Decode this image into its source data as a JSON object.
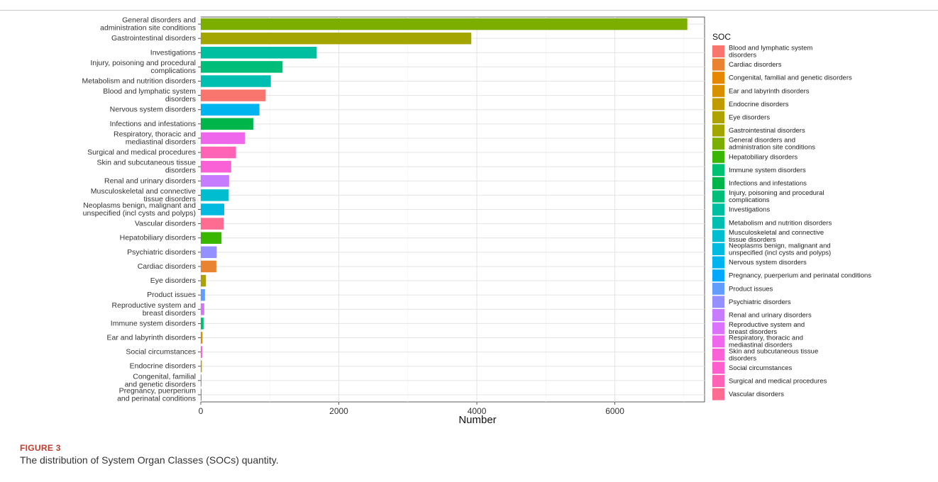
{
  "figure": {
    "label": "FIGURE 3",
    "caption": "The distribution of System Organ Classes (SOCs) quantity."
  },
  "chart_data": {
    "type": "bar",
    "orientation": "horizontal",
    "title": "",
    "xlabel": "Number",
    "ylabel": "",
    "xlim": [
      0,
      7300
    ],
    "xticks": [
      0,
      2000,
      4000,
      6000
    ],
    "grid": true,
    "legend_title": "SOC",
    "legend_position": "right",
    "bars": [
      {
        "label": "General disorders and\nadministration site conditions",
        "value": 7050,
        "color": "#7CAE00"
      },
      {
        "label": "Gastrointestinal disorders",
        "value": 3920,
        "color": "#A3A500"
      },
      {
        "label": "Investigations",
        "value": 1680,
        "color": "#00BFA0"
      },
      {
        "label": "Injury, poisoning and procedural\ncomplications",
        "value": 1185,
        "color": "#00BE79"
      },
      {
        "label": "Metabolism and nutrition disorders",
        "value": 1015,
        "color": "#00BFB0"
      },
      {
        "label": "Blood and lymphatic system\ndisorders",
        "value": 940,
        "color": "#F8766D"
      },
      {
        "label": "Nervous system disorders",
        "value": 850,
        "color": "#00B4EF"
      },
      {
        "label": "Infections and infestations",
        "value": 760,
        "color": "#00B54A"
      },
      {
        "label": "Respiratory, thoracic and\nmediastinal disorders",
        "value": 640,
        "color": "#EF67EB"
      },
      {
        "label": "Surgical and medical procedures",
        "value": 510,
        "color": "#FF63B6"
      },
      {
        "label": "Skin and subcutaneous tissue\ndisorders",
        "value": 440,
        "color": "#FB61D7"
      },
      {
        "label": "Renal and urinary disorders",
        "value": 410,
        "color": "#C77CFF"
      },
      {
        "label": "Musculoskeletal and connective\ntissue disorders",
        "value": 405,
        "color": "#00BECF"
      },
      {
        "label": "Neoplasms benign, malignant and\nunspecified (incl cysts and polyps)",
        "value": 340,
        "color": "#00BAE0"
      },
      {
        "label": "Vascular disorders",
        "value": 330,
        "color": "#FF6C91"
      },
      {
        "label": "Hepatobiliary disorders",
        "value": 300,
        "color": "#39B600"
      },
      {
        "label": "Psychiatric disorders",
        "value": 230,
        "color": "#9590FF"
      },
      {
        "label": "Cardiac disorders",
        "value": 225,
        "color": "#EA8331"
      },
      {
        "label": "Eye disorders",
        "value": 75,
        "color": "#AEA200"
      },
      {
        "label": "Product issues",
        "value": 60,
        "color": "#619CFF"
      },
      {
        "label": "Reproductive system and\nbreast disorders",
        "value": 50,
        "color": "#DB72FB"
      },
      {
        "label": "Immune system disorders",
        "value": 40,
        "color": "#00C072"
      },
      {
        "label": "Ear and labyrinth disorders",
        "value": 25,
        "color": "#D89000"
      },
      {
        "label": "Social circumstances",
        "value": 20,
        "color": "#FF5FCC"
      },
      {
        "label": "Endocrine disorders",
        "value": 15,
        "color": "#C09B00"
      },
      {
        "label": "Congenital, familial\nand genetic disorders",
        "value": 10,
        "color": "#E58700"
      },
      {
        "label": "Pregnancy, puerperium\nand perinatal conditions",
        "value": 5,
        "color": "#00A9FF"
      }
    ],
    "legend": [
      {
        "label": "Blood and lymphatic system\ndisorders",
        "color": "#F8766D"
      },
      {
        "label": "Cardiac disorders",
        "color": "#EA8331"
      },
      {
        "label": "Congenital, familial and genetic disorders",
        "color": "#E58700"
      },
      {
        "label": "Ear and labyrinth disorders",
        "color": "#D89000"
      },
      {
        "label": "Endocrine disorders",
        "color": "#C09B00"
      },
      {
        "label": "Eye disorders",
        "color": "#AEA200"
      },
      {
        "label": "Gastrointestinal disorders",
        "color": "#A3A500"
      },
      {
        "label": "General disorders and\nadministration site conditions",
        "color": "#7CAE00"
      },
      {
        "label": "Hepatobiliary disorders",
        "color": "#39B600"
      },
      {
        "label": "Immune system disorders",
        "color": "#00C072"
      },
      {
        "label": "Infections and infestations",
        "color": "#00B54A"
      },
      {
        "label": "Injury, poisoning and procedural\ncomplications",
        "color": "#00BE79"
      },
      {
        "label": "Investigations",
        "color": "#00BFA0"
      },
      {
        "label": "Metabolism and nutrition disorders",
        "color": "#00BFB0"
      },
      {
        "label": "Musculoskeletal and connective\ntissue disorders",
        "color": "#00BECF"
      },
      {
        "label": "Neoplasms benign, malignant and\nunspecified (incl cysts and polyps)",
        "color": "#00BAE0"
      },
      {
        "label": "Nervous system disorders",
        "color": "#00B4EF"
      },
      {
        "label": "Pregnancy, puerperium and perinatal conditions",
        "color": "#00A9FF"
      },
      {
        "label": "Product issues",
        "color": "#619CFF"
      },
      {
        "label": "Psychiatric disorders",
        "color": "#9590FF"
      },
      {
        "label": "Renal and urinary disorders",
        "color": "#C77CFF"
      },
      {
        "label": "Reproductive system and\nbreast disorders",
        "color": "#DB72FB"
      },
      {
        "label": "Respiratory, thoracic and\nmediastinal disorders",
        "color": "#EF67EB"
      },
      {
        "label": "Skin and subcutaneous tissue\ndisorders",
        "color": "#FB61D7"
      },
      {
        "label": "Social circumstances",
        "color": "#FF5FCC"
      },
      {
        "label": "Surgical and medical procedures",
        "color": "#FF63B6"
      },
      {
        "label": "Vascular disorders",
        "color": "#FF6C91"
      }
    ]
  }
}
